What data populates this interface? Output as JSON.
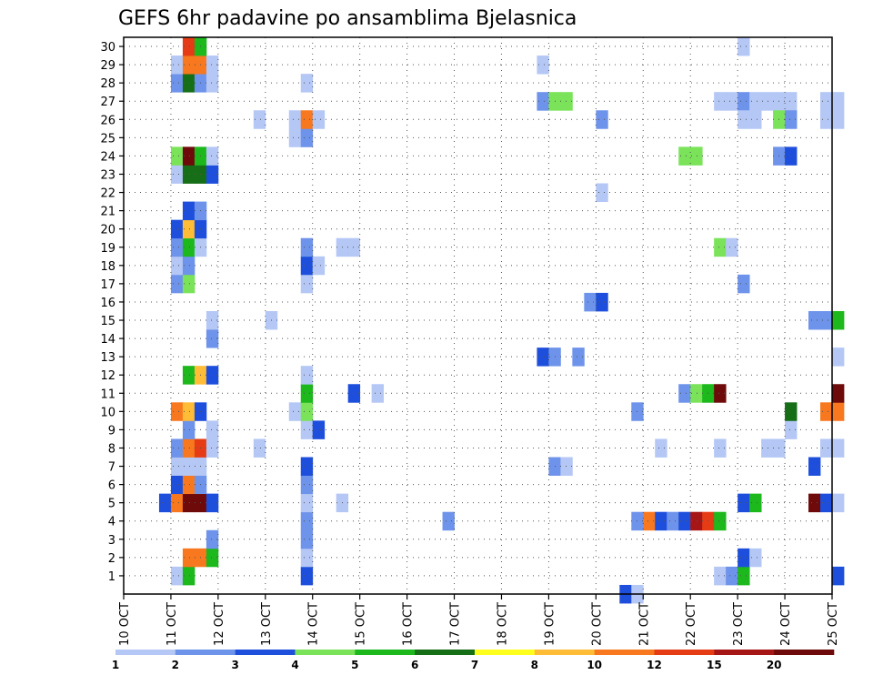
{
  "chart_data": {
    "type": "heatmap",
    "title": "GEFS 6hr padavine po ansamblima Bjelasnica",
    "x_ticks": [
      "10 OCT",
      "11 OCT",
      "12 OCT",
      "13 OCT",
      "14 OCT",
      "15 OCT",
      "16 OCT",
      "17 OCT",
      "18 OCT",
      "19 OCT",
      "20 OCT",
      "21 OCT",
      "22 OCT",
      "23 OCT",
      "24 OCT",
      "25 OCT"
    ],
    "y_ticks": [
      "1",
      "2",
      "3",
      "4",
      "5",
      "6",
      "7",
      "8",
      "9",
      "10",
      "11",
      "12",
      "13",
      "14",
      "15",
      "16",
      "17",
      "18",
      "19",
      "20",
      "21",
      "22",
      "23",
      "24",
      "25",
      "26",
      "27",
      "28",
      "29",
      "30"
    ],
    "xlim": [
      "10 OCT",
      "25 OCT"
    ],
    "ylim": [
      0,
      30
    ],
    "time_step_hours": 6,
    "grid": true,
    "colorbar": {
      "levels": [
        "1",
        "2",
        "3",
        "4",
        "5",
        "6",
        "7",
        "8",
        "10",
        "12",
        "15",
        "20"
      ],
      "colors": [
        "#b4c7f5",
        "#6e93ea",
        "#1e4fdc",
        "#7ae35a",
        "#1cb81c",
        "#166e16",
        "#ffff1e",
        "#ffbc36",
        "#f7781e",
        "#e63c16",
        "#a61616",
        "#6e0a0a"
      ]
    },
    "cells": [
      [
        "11 OCT 00Z",
        1,
        1
      ],
      [
        "11 OCT 06Z",
        1,
        5
      ],
      [
        "11 OCT 06Z",
        2,
        10
      ],
      [
        "11 OCT 12Z",
        2,
        10
      ],
      [
        "11 OCT 18Z",
        2,
        5
      ],
      [
        "11 OCT 18Z",
        3,
        2
      ],
      [
        "10 OCT 18Z",
        5,
        3
      ],
      [
        "11 OCT 00Z",
        5,
        10
      ],
      [
        "11 OCT 06Z",
        5,
        20
      ],
      [
        "11 OCT 12Z",
        5,
        20
      ],
      [
        "11 OCT 18Z",
        5,
        3
      ],
      [
        "11 OCT 00Z",
        6,
        3
      ],
      [
        "11 OCT 06Z",
        6,
        10
      ],
      [
        "11 OCT 12Z",
        6,
        2
      ],
      [
        "11 OCT 00Z",
        7,
        1
      ],
      [
        "11 OCT 06Z",
        7,
        1
      ],
      [
        "11 OCT 12Z",
        7,
        1
      ],
      [
        "11 OCT 00Z",
        8,
        2
      ],
      [
        "11 OCT 06Z",
        8,
        10
      ],
      [
        "11 OCT 12Z",
        8,
        12
      ],
      [
        "11 OCT 18Z",
        8,
        1
      ],
      [
        "11 OCT 06Z",
        9,
        2
      ],
      [
        "11 OCT 18Z",
        9,
        1
      ],
      [
        "11 OCT 00Z",
        10,
        10
      ],
      [
        "11 OCT 06Z",
        10,
        8
      ],
      [
        "11 OCT 12Z",
        10,
        3
      ],
      [
        "11 OCT 06Z",
        12,
        5
      ],
      [
        "11 OCT 12Z",
        12,
        8
      ],
      [
        "11 OCT 18Z",
        12,
        3
      ],
      [
        "11 OCT 18Z",
        14,
        2
      ],
      [
        "11 OCT 18Z",
        15,
        1
      ],
      [
        "11 OCT 00Z",
        17,
        2
      ],
      [
        "11 OCT 06Z",
        17,
        4
      ],
      [
        "11 OCT 00Z",
        18,
        1
      ],
      [
        "11 OCT 06Z",
        18,
        2
      ],
      [
        "11 OCT 00Z",
        19,
        2
      ],
      [
        "11 OCT 06Z",
        19,
        5
      ],
      [
        "11 OCT 12Z",
        19,
        1
      ],
      [
        "11 OCT 00Z",
        20,
        3
      ],
      [
        "11 OCT 06Z",
        20,
        8
      ],
      [
        "11 OCT 12Z",
        20,
        3
      ],
      [
        "11 OCT 06Z",
        21,
        3
      ],
      [
        "11 OCT 12Z",
        21,
        2
      ],
      [
        "11 OCT 00Z",
        23,
        1
      ],
      [
        "11 OCT 06Z",
        23,
        6
      ],
      [
        "11 OCT 12Z",
        23,
        6
      ],
      [
        "11 OCT 18Z",
        23,
        3
      ],
      [
        "11 OCT 00Z",
        24,
        4
      ],
      [
        "11 OCT 06Z",
        24,
        20
      ],
      [
        "11 OCT 12Z",
        24,
        5
      ],
      [
        "11 OCT 18Z",
        24,
        1
      ],
      [
        "11 OCT 00Z",
        28,
        2
      ],
      [
        "11 OCT 06Z",
        28,
        6
      ],
      [
        "11 OCT 12Z",
        28,
        2
      ],
      [
        "11 OCT 18Z",
        28,
        1
      ],
      [
        "11 OCT 00Z",
        29,
        1
      ],
      [
        "11 OCT 06Z",
        29,
        10
      ],
      [
        "11 OCT 12Z",
        29,
        10
      ],
      [
        "11 OCT 18Z",
        29,
        1
      ],
      [
        "11 OCT 06Z",
        30,
        12
      ],
      [
        "11 OCT 12Z",
        30,
        5
      ],
      [
        "12 OCT 18Z",
        8,
        1
      ],
      [
        "12 OCT 18Z",
        26,
        1
      ],
      [
        "13 OCT 00Z",
        15,
        1
      ],
      [
        "13 OCT 18Z",
        1,
        3
      ],
      [
        "13 OCT 18Z",
        2,
        1
      ],
      [
        "13 OCT 18Z",
        3,
        2
      ],
      [
        "13 OCT 18Z",
        4,
        2
      ],
      [
        "13 OCT 18Z",
        5,
        1
      ],
      [
        "13 OCT 18Z",
        6,
        2
      ],
      [
        "13 OCT 18Z",
        7,
        3
      ],
      [
        "13 OCT 18Z",
        9,
        1
      ],
      [
        "13 OCT 12Z",
        10,
        1
      ],
      [
        "13 OCT 18Z",
        10,
        4
      ],
      [
        "13 OCT 18Z",
        11,
        5
      ],
      [
        "13 OCT 18Z",
        12,
        1
      ],
      [
        "13 OCT 18Z",
        17,
        1
      ],
      [
        "13 OCT 18Z",
        18,
        3
      ],
      [
        "13 OCT 18Z",
        19,
        2
      ],
      [
        "13 OCT 12Z",
        25,
        1
      ],
      [
        "13 OCT 18Z",
        25,
        2
      ],
      [
        "13 OCT 12Z",
        26,
        1
      ],
      [
        "13 OCT 18Z",
        26,
        10
      ],
      [
        "13 OCT 18Z",
        28,
        1
      ],
      [
        "14 OCT 00Z",
        9,
        3
      ],
      [
        "14 OCT 00Z",
        18,
        1
      ],
      [
        "14 OCT 00Z",
        26,
        1
      ],
      [
        "14 OCT 12Z",
        5,
        1
      ],
      [
        "14 OCT 12Z",
        19,
        1
      ],
      [
        "14 OCT 18Z",
        19,
        1
      ],
      [
        "14 OCT 18Z",
        11,
        3
      ],
      [
        "15 OCT 06Z",
        11,
        1
      ],
      [
        "16 OCT 18Z",
        4,
        2
      ],
      [
        "18 OCT 18Z",
        13,
        3
      ],
      [
        "19 OCT 00Z",
        13,
        2
      ],
      [
        "19 OCT 12Z",
        13,
        2
      ],
      [
        "18 OCT 18Z",
        27,
        2
      ],
      [
        "19 OCT 00Z",
        27,
        4
      ],
      [
        "19 OCT 06Z",
        27,
        4
      ],
      [
        "18 OCT 18Z",
        29,
        1
      ],
      [
        "19 OCT 00Z",
        7,
        2
      ],
      [
        "19 OCT 06Z",
        7,
        1
      ],
      [
        "19 OCT 18Z",
        16,
        2
      ],
      [
        "20 OCT 00Z",
        16,
        3
      ],
      [
        "20 OCT 00Z",
        22,
        1
      ],
      [
        "20 OCT 00Z",
        26,
        2
      ],
      [
        "20 OCT 12Z",
        0,
        3
      ],
      [
        "20 OCT 18Z",
        0,
        1
      ],
      [
        "20 OCT 18Z",
        10,
        2
      ],
      [
        "20 OCT 18Z",
        4,
        2
      ],
      [
        "21 OCT 00Z",
        4,
        10
      ],
      [
        "21 OCT 06Z",
        4,
        3
      ],
      [
        "21 OCT 12Z",
        4,
        2
      ],
      [
        "21 OCT 18Z",
        4,
        3
      ],
      [
        "22 OCT 00Z",
        4,
        15
      ],
      [
        "22 OCT 06Z",
        4,
        12
      ],
      [
        "22 OCT 12Z",
        4,
        5
      ],
      [
        "21 OCT 06Z",
        8,
        1
      ],
      [
        "21 OCT 18Z",
        11,
        2
      ],
      [
        "22 OCT 00Z",
        11,
        4
      ],
      [
        "22 OCT 06Z",
        11,
        5
      ],
      [
        "22 OCT 12Z",
        11,
        20
      ],
      [
        "21 OCT 18Z",
        24,
        4
      ],
      [
        "22 OCT 00Z",
        24,
        4
      ],
      [
        "22 OCT 12Z",
        1,
        1
      ],
      [
        "22 OCT 18Z",
        1,
        2
      ],
      [
        "23 OCT 00Z",
        1,
        5
      ],
      [
        "22 OCT 12Z",
        8,
        1
      ],
      [
        "22 OCT 12Z",
        19,
        4
      ],
      [
        "22 OCT 18Z",
        19,
        1
      ],
      [
        "22 OCT 12Z",
        27,
        1
      ],
      [
        "22 OCT 18Z",
        27,
        1
      ],
      [
        "23 OCT 00Z",
        27,
        2
      ],
      [
        "23 OCT 06Z",
        27,
        1
      ],
      [
        "23 OCT 12Z",
        27,
        1
      ],
      [
        "23 OCT 18Z",
        27,
        1
      ],
      [
        "24 OCT 00Z",
        27,
        1
      ],
      [
        "23 OCT 00Z",
        2,
        3
      ],
      [
        "23 OCT 06Z",
        2,
        1
      ],
      [
        "23 OCT 00Z",
        5,
        3
      ],
      [
        "23 OCT 06Z",
        5,
        5
      ],
      [
        "23 OCT 00Z",
        17,
        2
      ],
      [
        "23 OCT 00Z",
        26,
        1
      ],
      [
        "23 OCT 06Z",
        26,
        1
      ],
      [
        "23 OCT 18Z",
        26,
        4
      ],
      [
        "24 OCT 00Z",
        26,
        2
      ],
      [
        "23 OCT 00Z",
        30,
        1
      ],
      [
        "23 OCT 12Z",
        8,
        1
      ],
      [
        "23 OCT 18Z",
        8,
        1
      ],
      [
        "23 OCT 18Z",
        24,
        2
      ],
      [
        "24 OCT 00Z",
        24,
        3
      ],
      [
        "24 OCT 00Z",
        9,
        1
      ],
      [
        "24 OCT 00Z",
        10,
        6
      ],
      [
        "24 OCT 12Z",
        5,
        20
      ],
      [
        "24 OCT 18Z",
        5,
        3
      ],
      [
        "25 OCT 00Z",
        5,
        1
      ],
      [
        "24 OCT 12Z",
        7,
        3
      ],
      [
        "24 OCT 18Z",
        8,
        1
      ],
      [
        "25 OCT 00Z",
        8,
        1
      ],
      [
        "24 OCT 18Z",
        10,
        10
      ],
      [
        "25 OCT 00Z",
        10,
        10
      ],
      [
        "24 OCT 12Z",
        15,
        2
      ],
      [
        "24 OCT 18Z",
        15,
        2
      ],
      [
        "25 OCT 00Z",
        15,
        5
      ],
      [
        "24 OCT 18Z",
        26,
        1
      ],
      [
        "25 OCT 00Z",
        26,
        1
      ],
      [
        "24 OCT 18Z",
        27,
        1
      ],
      [
        "25 OCT 00Z",
        27,
        1
      ],
      [
        "25 OCT 00Z",
        1,
        3
      ],
      [
        "25 OCT 00Z",
        11,
        20
      ],
      [
        "25 OCT 00Z",
        13,
        1
      ]
    ]
  }
}
